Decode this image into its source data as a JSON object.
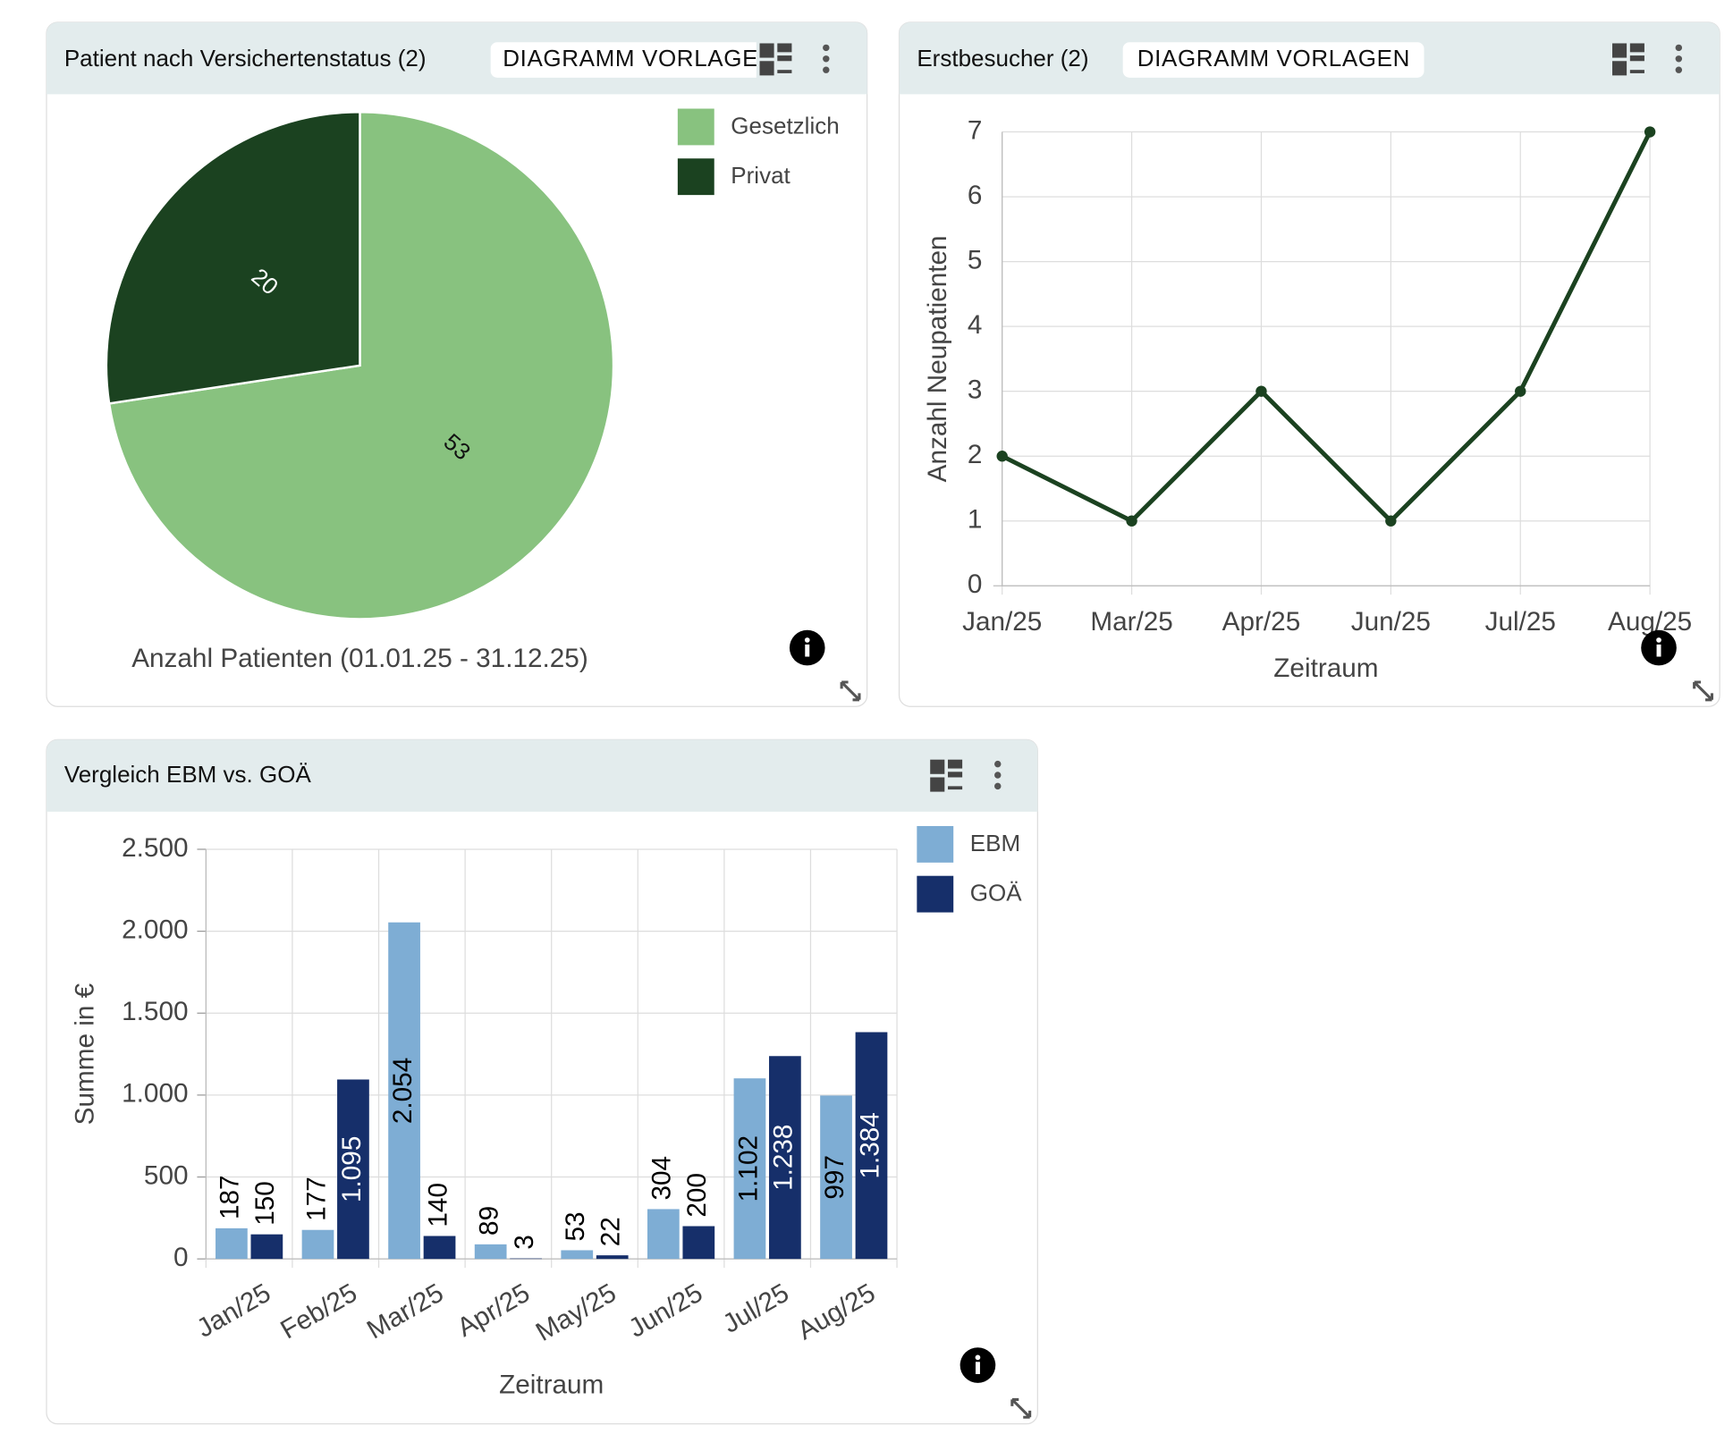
{
  "chart_data": [
    {
      "type": "pie",
      "title": "Patient nach Versichertenstatus (2)",
      "button": "DIAGRAMM VORLAGEN",
      "categories": [
        "Gesetzlich",
        "Privat"
      ],
      "values": [
        53,
        20
      ],
      "colors": [
        "#88c27f",
        "#1b4220"
      ],
      "xlabel": "Anzahl Patienten (01.01.25 - 31.12.25)",
      "legend": "top-right"
    },
    {
      "type": "line",
      "title": "Erstbesucher (2)",
      "button": "DIAGRAMM VORLAGEN",
      "categories": [
        "Jan/25",
        "Mar/25",
        "Apr/25",
        "Jun/25",
        "Jul/25",
        "Aug/25"
      ],
      "values": [
        2,
        1,
        3,
        1,
        3,
        7
      ],
      "color": "#1b4220",
      "ylim": [
        0,
        7
      ],
      "yticks": [
        0,
        1,
        2,
        3,
        4,
        5,
        6,
        7
      ],
      "grid": true,
      "xlabel": "Zeitraum",
      "ylabel": "Anzahl Neupatienten"
    },
    {
      "type": "bar",
      "title": "Vergleich EBM vs. GOÄ",
      "categories": [
        "Jan/25",
        "Feb/25",
        "Mar/25",
        "Apr/25",
        "May/25",
        "Jun/25",
        "Jul/25",
        "Aug/25"
      ],
      "series": [
        {
          "name": "EBM",
          "color": "#7eadd4",
          "values": [
            187,
            177,
            2054,
            89,
            53,
            304,
            1102,
            997
          ],
          "value_labels": [
            "187",
            "177",
            "2.054",
            "89",
            "53",
            "304",
            "1.102",
            "997"
          ]
        },
        {
          "name": "GOÄ",
          "color": "#162f6a",
          "values": [
            150,
            1095,
            140,
            3,
            22,
            200,
            1238,
            1384
          ],
          "value_labels": [
            "150",
            "1.095",
            "140",
            "3",
            "22",
            "200",
            "1.238",
            "1.384"
          ]
        }
      ],
      "ylim": [
        0,
        2500
      ],
      "yticks": [
        0,
        500,
        {
          "value": 1000,
          "label": "1.000"
        },
        {
          "value": 1500,
          "label": "1.500"
        },
        {
          "value": 2000,
          "label": "2.000"
        },
        {
          "value": 2500,
          "label": "2.500"
        }
      ],
      "grid": true,
      "xlabel": "Zeitraum",
      "ylabel": "Summe in €",
      "legend": "top-right"
    }
  ]
}
